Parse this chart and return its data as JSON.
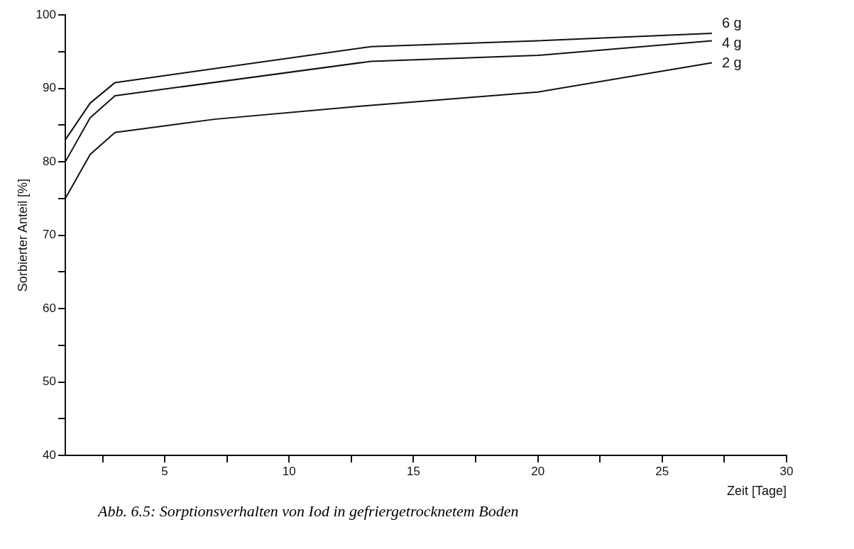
{
  "chart_data": {
    "type": "line",
    "xlabel": "Zeit [Tage]",
    "ylabel": "Sorbierter Anteil [%]",
    "annotations": [
      "Abb. 6.5: Sorptionsverhalten von Iod in gefriergetrocknetem Boden"
    ],
    "xlim": [
      1,
      30
    ],
    "xticks": [
      {
        "value": 2.5,
        "label": null
      },
      5,
      {
        "value": 7.5,
        "label": null
      },
      10,
      {
        "value": 12.5,
        "label": null
      },
      15,
      {
        "value": 17.5,
        "label": null
      },
      20,
      {
        "value": 22.5,
        "label": null
      },
      25,
      {
        "value": 27.5,
        "label": null
      },
      30
    ],
    "ylim": [
      40,
      100
    ],
    "yticks": [
      40,
      {
        "value": 45,
        "label": null
      },
      50,
      {
        "value": 55,
        "label": null
      },
      60,
      {
        "value": 65,
        "label": null
      },
      70,
      {
        "value": 75,
        "label": null
      },
      80,
      {
        "value": 85,
        "label": null
      },
      90,
      {
        "value": 95,
        "label": null
      },
      100
    ],
    "grid": false,
    "legend": false,
    "marker": "none",
    "line_style": "solid",
    "series": [
      {
        "name": "6 g",
        "color": "#111111",
        "x": [
          1,
          2,
          3,
          13.3,
          20,
          27
        ],
        "values": [
          83,
          88,
          90.8,
          95.7,
          96.5,
          97.5
        ]
      },
      {
        "name": "4 g",
        "color": "#111111",
        "x": [
          1,
          2,
          3,
          13.3,
          20,
          27
        ],
        "values": [
          80,
          86,
          89,
          93.7,
          94.5,
          96.5
        ]
      },
      {
        "name": "2 g",
        "color": "#111111",
        "x": [
          1,
          2,
          3,
          7,
          13.3,
          20,
          27
        ],
        "values": [
          75,
          81,
          84,
          85.8,
          87.7,
          89.5,
          93.5
        ]
      }
    ]
  }
}
